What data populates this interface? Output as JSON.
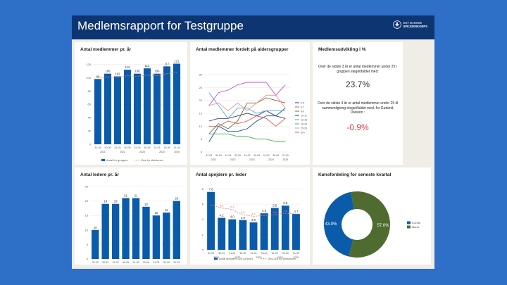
{
  "header": {
    "title_prefix": "Medlemsrapport for ",
    "title_group": "Testgruppe",
    "logo_line1": "DET DANSKE",
    "logo_line2": "SPEJDERKORPS"
  },
  "colors": {
    "bar": "#0a5cab",
    "dash": "#e17a6e",
    "green": "#4f6b2f",
    "header": "#0d3572"
  },
  "panels": {
    "members": "Antal medlemmer pr. år",
    "age": "Antal medlemmer fordelt på aldersgrupper",
    "kpi": "Medlemsudvikling i %",
    "leaders": "Antal ledere pr. år",
    "scouts": "Antal spejdere pr. leder",
    "gender": "Kønsfordeling for seneste kvartal"
  },
  "kpi": {
    "text1": "Over de sidste 3 år er antal medlemmer under 25 i gruppen steget/faldet med:",
    "value1": "23.7%",
    "text2": "Over de sidste 3 år er antal medlemmer under 25 til sammenligning steget/faldet med, for Gudenå Division :",
    "value2": "-0.9%"
  },
  "chart_data": [
    {
      "type": "bar",
      "title": "Antal medlemmer pr. år",
      "categories": [
        "31-03",
        "30-09",
        "31-03",
        "30-09",
        "31-03",
        "30-09",
        "31-03",
        "30-09",
        "31-03"
      ],
      "years": [
        "2021",
        "2022",
        "2023",
        "2024",
        "2025"
      ],
      "values": [
        98,
        106,
        102,
        112,
        106,
        114,
        106,
        117,
        121
      ],
      "series": [
        {
          "name": "Antal for gruppen",
          "values": [
            98,
            106,
            102,
            112,
            106,
            114,
            106,
            117,
            121
          ]
        },
        {
          "name": "Gns for divisionen",
          "values": [
            100,
            101,
            100,
            103,
            102,
            104,
            103,
            106,
            108
          ]
        }
      ],
      "yticks": [
        "0",
        "20",
        "40",
        "60",
        "80",
        "100",
        "120"
      ],
      "ylim": [
        0,
        130
      ]
    },
    {
      "type": "line",
      "title": "Antal medlemmer fordelt på aldersgrupper",
      "categories": [
        "31-03",
        "30-09",
        "31-03",
        "30-09",
        "31-03",
        "30-09",
        "31-03",
        "30-09",
        "31-03"
      ],
      "years": [
        "2021",
        "2022",
        "2023",
        "2024",
        "2025"
      ],
      "yticks": [
        "0",
        "5",
        "10",
        "15",
        "20",
        "25",
        "30"
      ],
      "ylim": [
        0,
        30
      ],
      "series": [
        {
          "name": "0-5",
          "color": "#0b4fa0",
          "values": [
            4,
            10,
            8,
            8,
            9,
            12,
            14,
            14,
            17
          ]
        },
        {
          "name": "6-7",
          "color": "#e0533c",
          "values": [
            10,
            10,
            12,
            11,
            12,
            14,
            13,
            10,
            13
          ]
        },
        {
          "name": "8-9",
          "color": "#7a6a2f",
          "values": [
            7,
            11,
            9,
            12,
            19,
            19,
            21,
            20,
            19
          ]
        },
        {
          "name": "10-11",
          "color": "#2f3e6b",
          "values": [
            12,
            13,
            13,
            14,
            15,
            14,
            16,
            14,
            13
          ]
        },
        {
          "name": "12-16",
          "color": "#52a6d8",
          "values": [
            23,
            18,
            13,
            17,
            17,
            15,
            16,
            16,
            16
          ]
        },
        {
          "name": "16-24",
          "color": "#3fb34a",
          "values": [
            7,
            7,
            7,
            6,
            6,
            5,
            5,
            4,
            4
          ]
        },
        {
          "name": "25-29",
          "color": "#f08d8d",
          "values": [
            18,
            19,
            16,
            19,
            16,
            19,
            22,
            22,
            17
          ]
        },
        {
          "name": "30+",
          "color": "#c94fd3",
          "values": [
            18,
            23,
            24,
            26,
            27,
            27,
            27,
            22,
            26
          ]
        }
      ]
    },
    {
      "type": "bar",
      "title": "Antal ledere pr. år",
      "categories": [
        "31-03",
        "30-09",
        "31-03",
        "30-09",
        "31-03",
        "30-09",
        "31-03",
        "30-09",
        "31-03"
      ],
      "years": [
        "2021",
        "2022",
        "2023",
        "2024",
        "2025"
      ],
      "values": [
        10,
        19,
        19,
        21,
        21,
        18,
        15,
        16,
        20
      ],
      "yticks": [
        "0",
        "5",
        "10",
        "15",
        "20",
        "25"
      ],
      "ylim": [
        0,
        25
      ]
    },
    {
      "type": "bar",
      "title": "Antal spejdere pr. leder",
      "categories": [
        "31-03",
        "30-09",
        "31-03",
        "30-09",
        "31-03",
        "30-09",
        "31-03",
        "30-09",
        "31-03"
      ],
      "years": [
        "2021",
        "2022",
        "2023",
        "2024",
        "2025"
      ],
      "values": [
        7.6,
        4.2,
        4.0,
        3.9,
        3.6,
        4.8,
        5.5,
        5.8,
        4.7
      ],
      "series": [
        {
          "name": "Antal spejdere u25 pr leder",
          "values": [
            7.6,
            4.2,
            4.0,
            3.9,
            3.6,
            4.8,
            5.5,
            5.8,
            4.7
          ]
        },
        {
          "name": "Gns u25 for divisionen",
          "values": [
            5.9,
            5.5,
            5.3,
            4.6,
            4.4,
            4.5,
            4.6,
            4.8,
            4.7
          ]
        }
      ],
      "dash_labels": [
        "5.9",
        "5.5",
        "5.3",
        "4.6",
        "4.4",
        "4.5",
        "4.6",
        "4.8",
        "4.7"
      ],
      "yticks": [
        "0",
        "2",
        "4",
        "6",
        "8"
      ],
      "ylim": [
        0,
        8.5
      ]
    },
    {
      "type": "pie",
      "title": "Kønsfordeling for seneste kvartal",
      "slices": [
        {
          "name": "Kvinde",
          "value": 43.0,
          "label": "43.0%",
          "color": "#0a5cab"
        },
        {
          "name": "Mand",
          "value": 57.0,
          "label": "57.0%",
          "color": "#4f6b2f"
        }
      ]
    }
  ]
}
